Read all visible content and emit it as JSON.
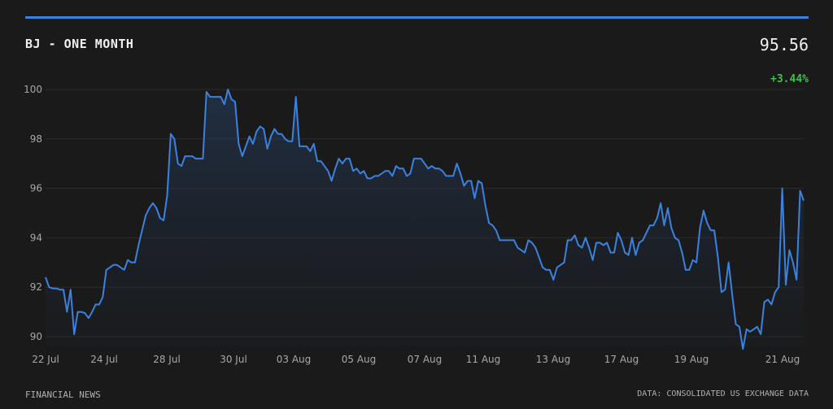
{
  "header": {
    "title": "BJ - ONE MONTH",
    "price": "95.56",
    "change": "+3.44%"
  },
  "footer": {
    "left": "FINANCIAL NEWS",
    "right": "DATA: CONSOLIDATED US EXCHANGE DATA"
  },
  "colors": {
    "line": "#3b82e0",
    "positive": "#3ec24a",
    "background": "#1a1a1a"
  },
  "chart_data": {
    "type": "line",
    "title": "BJ - ONE MONTH",
    "xlabel": "",
    "ylabel": "",
    "ylim": [
      89.5,
      100.3
    ],
    "yticks": [
      90,
      92,
      94,
      96,
      98,
      100
    ],
    "xticks": [
      "22 Jul",
      "24 Jul",
      "28 Jul",
      "30 Jul",
      "03 Aug",
      "05 Aug",
      "07 Aug",
      "11 Aug",
      "13 Aug",
      "17 Aug",
      "19 Aug",
      "21 Aug"
    ],
    "grid": true,
    "series": [
      {
        "values": [
          92.4,
          92.0,
          91.95,
          91.95,
          91.9,
          91.9,
          91.0,
          91.9,
          90.1,
          91.0,
          91.0,
          90.95,
          90.75,
          91.0,
          91.3,
          91.3,
          91.6,
          92.7,
          92.8,
          92.9,
          92.9,
          92.8,
          92.7,
          93.1,
          93.0,
          93.0,
          93.7,
          94.3,
          94.9,
          95.2,
          95.4,
          95.2,
          94.8,
          94.7,
          95.7,
          98.2,
          98.0,
          97.0,
          96.9,
          97.3,
          97.3,
          97.3,
          97.2,
          97.2,
          97.2,
          99.9,
          99.7,
          99.7,
          99.7,
          99.7,
          99.4,
          100.0,
          99.6,
          99.5,
          97.8,
          97.3,
          97.7,
          98.1,
          97.8,
          98.3,
          98.5,
          98.4,
          97.6,
          98.1,
          98.4,
          98.2,
          98.2,
          98.0,
          97.9,
          97.9,
          99.7,
          97.7,
          97.7,
          97.7,
          97.5,
          97.8,
          97.1,
          97.1,
          96.9,
          96.7,
          96.3,
          96.8,
          97.2,
          97.0,
          97.2,
          97.2,
          96.7,
          96.8,
          96.6,
          96.7,
          96.4,
          96.4,
          96.5,
          96.5,
          96.6,
          96.7,
          96.7,
          96.5,
          96.9,
          96.8,
          96.8,
          96.5,
          96.6,
          97.2,
          97.2,
          97.2,
          97.0,
          96.8,
          96.9,
          96.8,
          96.8,
          96.7,
          96.5,
          96.5,
          96.5,
          97.0,
          96.6,
          96.1,
          96.3,
          96.3,
          95.6,
          96.3,
          96.2,
          95.3,
          94.6,
          94.5,
          94.3,
          93.9,
          93.9,
          93.9,
          93.9,
          93.9,
          93.6,
          93.5,
          93.4,
          93.9,
          93.8,
          93.6,
          93.2,
          92.8,
          92.7,
          92.7,
          92.3,
          92.8,
          92.9,
          93.0,
          93.9,
          93.9,
          94.1,
          93.7,
          93.6,
          94.0,
          93.6,
          93.1,
          93.8,
          93.8,
          93.7,
          93.8,
          93.4,
          93.4,
          94.2,
          93.9,
          93.4,
          93.3,
          94.0,
          93.3,
          93.8,
          93.9,
          94.2,
          94.5,
          94.5,
          94.8,
          95.4,
          94.5,
          95.2,
          94.4,
          94.0,
          93.9,
          93.4,
          92.7,
          92.7,
          93.1,
          93.0,
          94.4,
          95.1,
          94.6,
          94.3,
          94.3,
          93.2,
          91.8,
          91.9,
          93.0,
          91.7,
          90.5,
          90.4,
          89.5,
          90.3,
          90.2,
          90.3,
          90.4,
          90.1,
          91.4,
          91.5,
          91.3,
          91.8,
          92.0,
          96.0,
          92.1,
          93.5,
          93.0,
          92.3,
          95.9,
          95.5
        ]
      }
    ]
  }
}
